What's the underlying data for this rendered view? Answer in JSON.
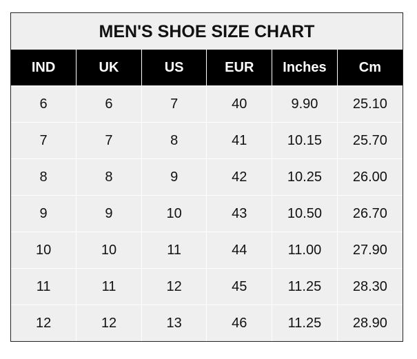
{
  "chart_data": {
    "type": "table",
    "title": "MEN'S SHOE SIZE CHART",
    "columns": [
      "IND",
      "UK",
      "US",
      "EUR",
      "Inches",
      "Cm"
    ],
    "rows": [
      [
        "6",
        "6",
        "7",
        "40",
        "9.90",
        "25.10"
      ],
      [
        "7",
        "7",
        "8",
        "41",
        "10.15",
        "25.70"
      ],
      [
        "8",
        "8",
        "9",
        "42",
        "10.25",
        "26.00"
      ],
      [
        "9",
        "9",
        "10",
        "43",
        "10.50",
        "26.70"
      ],
      [
        "10",
        "10",
        "11",
        "44",
        "11.00",
        "27.90"
      ],
      [
        "11",
        "11",
        "12",
        "45",
        "11.25",
        "28.30"
      ],
      [
        "12",
        "12",
        "13",
        "46",
        "11.25",
        "28.90"
      ]
    ],
    "colors": {
      "header_bg": "#000000",
      "header_text": "#ffffff",
      "body_bg": "#efefef",
      "grid": "#ffffff"
    }
  }
}
